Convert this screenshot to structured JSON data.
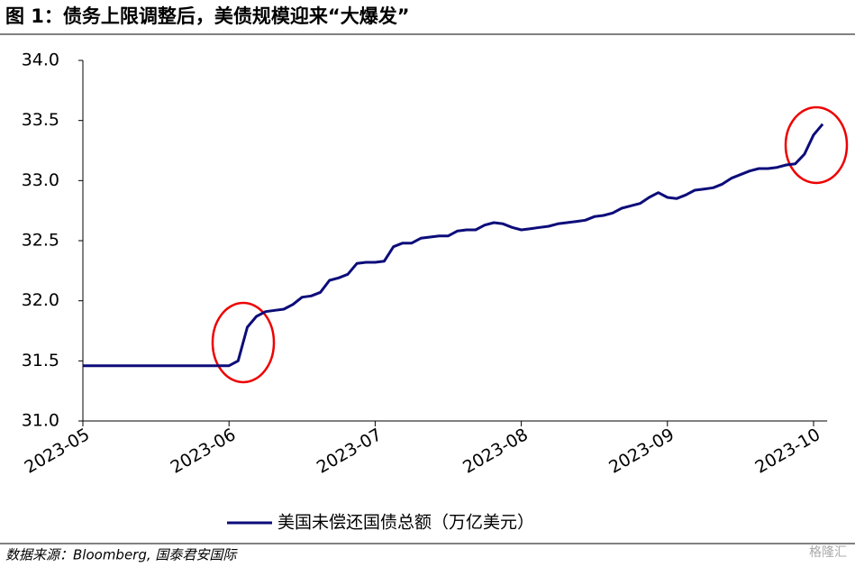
{
  "chart_data": {
    "type": "line",
    "title": "图 1：债务上限调整后，美债规模迎来“大爆发”",
    "source": "数据来源：Bloomberg, 国泰君安国际",
    "watermark": "格隆汇",
    "categories": [
      "2023-05",
      null,
      null,
      null,
      null,
      null,
      null,
      null,
      null,
      null,
      null,
      null,
      null,
      null,
      null,
      null,
      "2023-06",
      null,
      null,
      null,
      null,
      null,
      null,
      null,
      null,
      null,
      null,
      null,
      null,
      null,
      null,
      null,
      "2023-07",
      null,
      null,
      null,
      null,
      null,
      null,
      null,
      null,
      null,
      null,
      null,
      null,
      null,
      null,
      null,
      "2023-08",
      null,
      null,
      null,
      null,
      null,
      null,
      null,
      null,
      null,
      null,
      null,
      null,
      null,
      null,
      null,
      "2023-09",
      null,
      null,
      null,
      null,
      null,
      null,
      null,
      null,
      null,
      null,
      null,
      null,
      null,
      null,
      null,
      "2023-10",
      null
    ],
    "series": [
      {
        "name": "美国未偿还国债总额（万亿美元）",
        "color": "#0c0c7a",
        "values": [
          31.46,
          31.46,
          31.46,
          31.46,
          31.46,
          31.46,
          31.46,
          31.46,
          31.46,
          31.46,
          31.46,
          31.46,
          31.46,
          31.46,
          31.46,
          31.46,
          31.46,
          31.5,
          31.78,
          31.87,
          31.91,
          31.92,
          31.93,
          31.97,
          32.03,
          32.04,
          32.07,
          32.17,
          32.19,
          32.22,
          32.31,
          32.32,
          32.32,
          32.33,
          32.45,
          32.48,
          32.48,
          32.52,
          32.53,
          32.54,
          32.54,
          32.58,
          32.59,
          32.59,
          32.63,
          32.65,
          32.64,
          32.61,
          32.59,
          32.6,
          32.61,
          32.62,
          32.64,
          32.65,
          32.66,
          32.67,
          32.7,
          32.71,
          32.73,
          32.77,
          32.79,
          32.81,
          32.86,
          32.9,
          32.86,
          32.85,
          32.88,
          32.92,
          32.93,
          32.94,
          32.97,
          33.02,
          33.05,
          33.08,
          33.1,
          33.1,
          33.11,
          33.13,
          33.14,
          33.22,
          33.38,
          33.47
        ]
      }
    ],
    "ylim": [
      31,
      34
    ],
    "yticks": [
      {
        "value": 31,
        "label": "31.0"
      },
      31.5,
      {
        "value": 32,
        "label": "32.0"
      },
      32.5,
      {
        "value": 33,
        "label": "33.0"
      },
      33.5,
      {
        "value": 34,
        "label": "34.0"
      }
    ],
    "legend": "bottom"
  }
}
